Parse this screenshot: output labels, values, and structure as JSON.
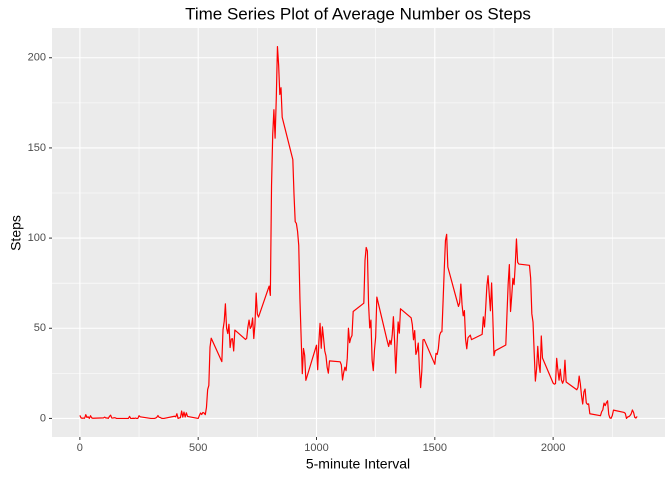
{
  "chart_data": {
    "type": "line",
    "title": "Time Series Plot of Average Number os Steps",
    "x_label": "5-minute Interval",
    "y_label": "Steps",
    "xlim": [
      -117.75,
      2472.75
    ],
    "ylim": [
      -10.3,
      216.5
    ],
    "xticks": [
      0,
      500,
      1000,
      1500,
      2000
    ],
    "yticks": [
      0,
      50,
      100,
      150,
      200
    ],
    "grid": true,
    "series": [
      {
        "name": "Steps",
        "color": "#ff0000",
        "x": [
          0,
          5,
          10,
          15,
          20,
          25,
          30,
          35,
          40,
          45,
          50,
          55,
          100,
          105,
          110,
          115,
          120,
          125,
          130,
          135,
          140,
          145,
          150,
          155,
          200,
          205,
          210,
          215,
          220,
          225,
          230,
          235,
          240,
          245,
          250,
          255,
          300,
          305,
          310,
          315,
          320,
          325,
          330,
          335,
          340,
          345,
          350,
          355,
          400,
          405,
          410,
          415,
          420,
          425,
          430,
          435,
          440,
          445,
          450,
          455,
          500,
          505,
          510,
          515,
          520,
          525,
          530,
          535,
          540,
          545,
          550,
          555,
          600,
          605,
          610,
          615,
          620,
          625,
          630,
          635,
          640,
          645,
          650,
          655,
          700,
          705,
          710,
          715,
          720,
          725,
          730,
          735,
          740,
          745,
          750,
          755,
          800,
          805,
          810,
          815,
          820,
          825,
          830,
          835,
          840,
          845,
          850,
          855,
          900,
          905,
          910,
          915,
          920,
          925,
          930,
          935,
          940,
          945,
          950,
          955,
          1000,
          1005,
          1010,
          1015,
          1020,
          1025,
          1030,
          1035,
          1040,
          1045,
          1050,
          1055,
          1100,
          1105,
          1110,
          1115,
          1120,
          1125,
          1130,
          1135,
          1140,
          1145,
          1150,
          1155,
          1200,
          1205,
          1210,
          1215,
          1220,
          1225,
          1230,
          1235,
          1240,
          1245,
          1250,
          1255,
          1300,
          1305,
          1310,
          1315,
          1320,
          1325,
          1330,
          1335,
          1340,
          1345,
          1350,
          1355,
          1400,
          1405,
          1410,
          1415,
          1420,
          1425,
          1430,
          1435,
          1440,
          1445,
          1450,
          1455,
          1500,
          1505,
          1510,
          1515,
          1520,
          1525,
          1530,
          1535,
          1540,
          1545,
          1550,
          1555,
          1600,
          1605,
          1610,
          1615,
          1620,
          1625,
          1630,
          1635,
          1640,
          1645,
          1650,
          1655,
          1700,
          1705,
          1710,
          1715,
          1720,
          1725,
          1730,
          1735,
          1740,
          1745,
          1750,
          1755,
          1800,
          1805,
          1810,
          1815,
          1820,
          1825,
          1830,
          1835,
          1840,
          1845,
          1850,
          1855,
          1900,
          1905,
          1910,
          1915,
          1920,
          1925,
          1930,
          1935,
          1940,
          1945,
          1950,
          1955,
          2000,
          2005,
          2010,
          2015,
          2020,
          2025,
          2030,
          2035,
          2040,
          2045,
          2050,
          2055,
          2100,
          2105,
          2110,
          2115,
          2120,
          2125,
          2130,
          2135,
          2140,
          2145,
          2150,
          2155,
          2200,
          2205,
          2210,
          2215,
          2220,
          2225,
          2230,
          2235,
          2240,
          2245,
          2250,
          2255,
          2300,
          2305,
          2310,
          2315,
          2320,
          2325,
          2330,
          2335,
          2340,
          2345,
          2350,
          2355
        ],
        "values": [
          1.7,
          0.3,
          0.1,
          0.2,
          0.1,
          2.1,
          0.5,
          0.9,
          0,
          1.5,
          0.3,
          0.1,
          0.3,
          0.7,
          0.2,
          0.3,
          0,
          1.1,
          1.8,
          0.2,
          0.2,
          0.4,
          0.3,
          0,
          0,
          0,
          1.1,
          0,
          0,
          0.1,
          0,
          0.2,
          0,
          0,
          1.5,
          0.9,
          0,
          0,
          0,
          0,
          0.2,
          0.6,
          1.6,
          0.6,
          0.5,
          0.1,
          0,
          0,
          1.2,
          0.9,
          2.6,
          0,
          0.3,
          0.4,
          4.1,
          0.7,
          3.5,
          0.8,
          3.1,
          1.1,
          0,
          1.6,
          3,
          2.2,
          3.3,
          3,
          2.1,
          6.1,
          16,
          18.3,
          39.5,
          44.5,
          31.5,
          49.3,
          53.8,
          63.5,
          50,
          47.1,
          52.2,
          39.3,
          44,
          44.2,
          37.4,
          49,
          43.8,
          44.4,
          50.5,
          54.5,
          49.9,
          51,
          55.7,
          44.3,
          52.3,
          69.5,
          57.8,
          56.2,
          73.4,
          68.2,
          129.4,
          157.5,
          171.2,
          155.4,
          177.3,
          206.2,
          195.9,
          179.6,
          183.4,
          167,
          143.5,
          124,
          109.1,
          108.1,
          103.7,
          95.9,
          66.2,
          45.2,
          24.8,
          38.8,
          35,
          21.1,
          40.6,
          27,
          42.4,
          52.7,
          38.9,
          50.8,
          44.3,
          37.4,
          34.7,
          28.3,
          25.1,
          31.9,
          31.4,
          29.7,
          21.3,
          25.5,
          28.4,
          26.5,
          33.4,
          50,
          42,
          44.6,
          46,
          59.3,
          63.9,
          87.7,
          94.8,
          92.8,
          63.4,
          50.2,
          54.5,
          32.4,
          26.5,
          37.7,
          45.1,
          67.3,
          42.3,
          39.9,
          43.3,
          40.98,
          46.2,
          56.4,
          42.8,
          25.1,
          39.9,
          53.5,
          47.3,
          60.8,
          55.8,
          51.96,
          43.6,
          48.7,
          35.5,
          37.5,
          41.8,
          27.5,
          17.1,
          26.1,
          43.6,
          43.8,
          30,
          36.1,
          35.5,
          38.8,
          45.96,
          47.8,
          48.1,
          65.3,
          82.9,
          98.7,
          102.1,
          83.96,
          62.1,
          64.1,
          74.5,
          63.2,
          56.9,
          59.8,
          43.9,
          38.6,
          44.7,
          45.5,
          46.2,
          43.7,
          46.6,
          56.3,
          50.7,
          61.2,
          73.4,
          79.1,
          68.9,
          59.7,
          75.1,
          56.5,
          34.8,
          37.5,
          40.7,
          58,
          74.7,
          85.3,
          59.3,
          67.8,
          77.7,
          74.2,
          85.3,
          99.5,
          86.6,
          85.6,
          84.9,
          77.8,
          58,
          53.4,
          36.3,
          20.7,
          27.4,
          40,
          30.2,
          25.5,
          45.7,
          33.5,
          19.6,
          19,
          19.3,
          33.3,
          26.8,
          21.2,
          27.3,
          21.3,
          19.5,
          21.3,
          32.3,
          20.2,
          15.9,
          17.2,
          23.5,
          19.2,
          12.5,
          8,
          14.7,
          16.3,
          8.7,
          7.8,
          8.1,
          2.6,
          1.5,
          3.7,
          4.8,
          8.5,
          7.1,
          8.7,
          9.8,
          2.2,
          0.3,
          0.1,
          1.6,
          4.6,
          3.3,
          2.8,
          0,
          0.8,
          1,
          1.6,
          2.6,
          4.7,
          3.3,
          0.6,
          0.2,
          1.1
        ]
      }
    ]
  }
}
